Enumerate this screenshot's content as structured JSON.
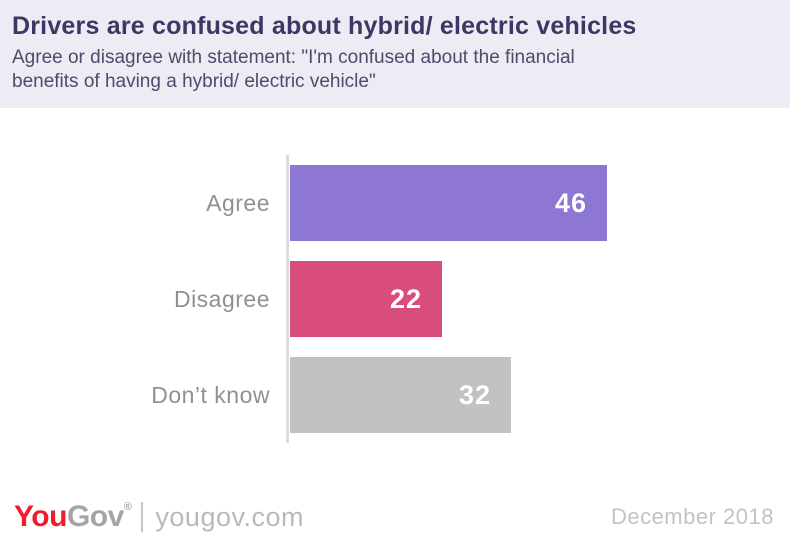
{
  "header": {
    "title": "Drivers are confused about hybrid/ electric vehicles",
    "subtitle_lines": [
      "Agree or disagree with statement: \"I'm confused about the financial",
      "benefits of having a hybrid/ electric vehicle\""
    ]
  },
  "chart_data": {
    "type": "bar",
    "orientation": "horizontal",
    "categories": [
      "Agree",
      "Disagree",
      "Don’t know"
    ],
    "values": [
      46,
      22,
      32
    ],
    "bar_colors": [
      "#8d77d3",
      "#d94d7e",
      "#c2c2c2"
    ],
    "value_label_color": "#ffffff",
    "category_label_color": "#909090",
    "axis_line_color": "#dcdcdc",
    "xlim": [
      0,
      50
    ],
    "grid": false,
    "legend": false,
    "title": "Drivers are confused about hybrid/ electric vehicles",
    "xlabel": "",
    "ylabel": ""
  },
  "footer": {
    "logo_you": "You",
    "logo_gov": "Gov",
    "logo_registered": "®",
    "site": "yougov.com",
    "date": "December 2018"
  },
  "colors": {
    "header_background": "#edebf4",
    "title_text": "#3b3863",
    "subtitle_text": "#4e4b6b",
    "logo_red": "#ee1c2c",
    "logo_gray": "#a5a5a5",
    "background": "#ffffff"
  }
}
